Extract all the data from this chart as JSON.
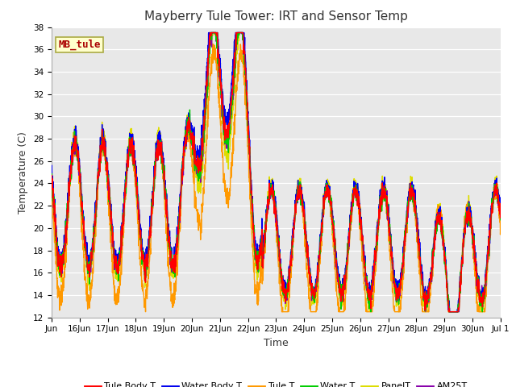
{
  "title": "Mayberry Tule Tower: IRT and Sensor Temp",
  "xlabel": "Time",
  "ylabel": "Temperature (C)",
  "ylim": [
    12,
    38
  ],
  "yticks": [
    12,
    14,
    16,
    18,
    20,
    22,
    24,
    26,
    28,
    30,
    32,
    34,
    36,
    38
  ],
  "fig_bg_color": "#ffffff",
  "plot_bg_color": "#e8e8e8",
  "annotation_text": "MB_tule",
  "annotation_color": "#aa0000",
  "annotation_bg": "#ffffcc",
  "annotation_border": "#aaaa44",
  "series_colors": {
    "Tule Body T": "#ff0000",
    "Water Body T": "#0000ee",
    "Tule T": "#ff9900",
    "Water T": "#00cc00",
    "PanelT": "#dddd00",
    "AM25T": "#8800aa"
  },
  "series_linewidth": 1.0,
  "title_fontsize": 11,
  "label_fontsize": 9,
  "tick_fontsize": 7.5,
  "legend_fontsize": 8
}
